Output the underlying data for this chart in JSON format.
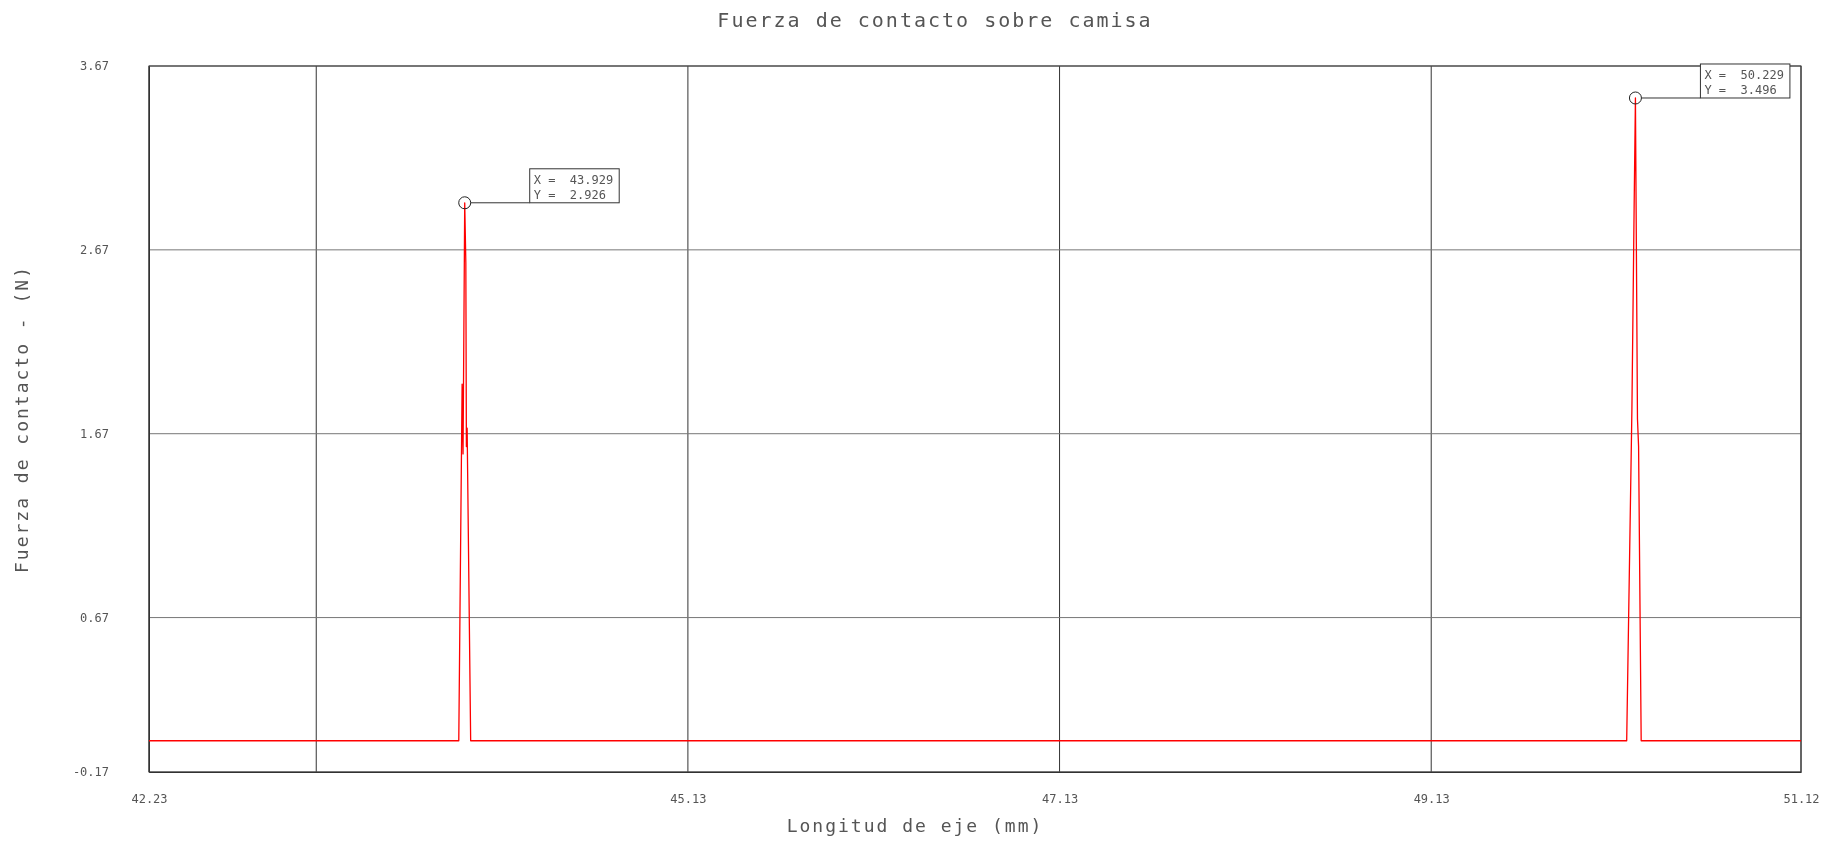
{
  "chart_data": {
    "type": "line",
    "title": "Fuerza de contacto sobre camisa",
    "xlabel": "Longitud de eje (mm)",
    "ylabel": "Fuerza de contacto - (N)",
    "x": [
      42.23,
      43.89,
      43.897,
      43.915,
      43.92,
      43.929,
      43.935,
      43.938,
      43.942,
      43.961,
      50.182,
      50.21,
      50.222,
      50.229,
      50.234,
      50.24,
      50.246,
      50.26,
      51.12
    ],
    "series": [
      {
        "color": "#ff0000",
        "values": [
          0,
          0,
          0,
          1.94,
          1.56,
          2.926,
          2.6,
          1.6,
          1.7,
          0,
          0,
          1.8,
          2.9,
          3.496,
          2.7,
          1.75,
          1.6,
          0,
          0
        ]
      }
    ],
    "xlim": [
      42.23,
      51.12
    ],
    "xticks": [
      42.23,
      {
        "value": 43.13,
        "label": null
      },
      45.13,
      47.13,
      49.13,
      51.12
    ],
    "ylim": [
      -0.17,
      3.67
    ],
    "yticks": [
      -0.17,
      0.67,
      1.67,
      2.67,
      3.67
    ],
    "grid": true,
    "marker": "none",
    "line_style": "solid",
    "annotations": [
      {
        "text": "X =  43.929\nY =  2.926",
        "x": 43.929,
        "y": 2.926
      },
      {
        "text": "X =  50.229\nY =  3.496",
        "x": 50.229,
        "y": 3.496
      }
    ]
  }
}
